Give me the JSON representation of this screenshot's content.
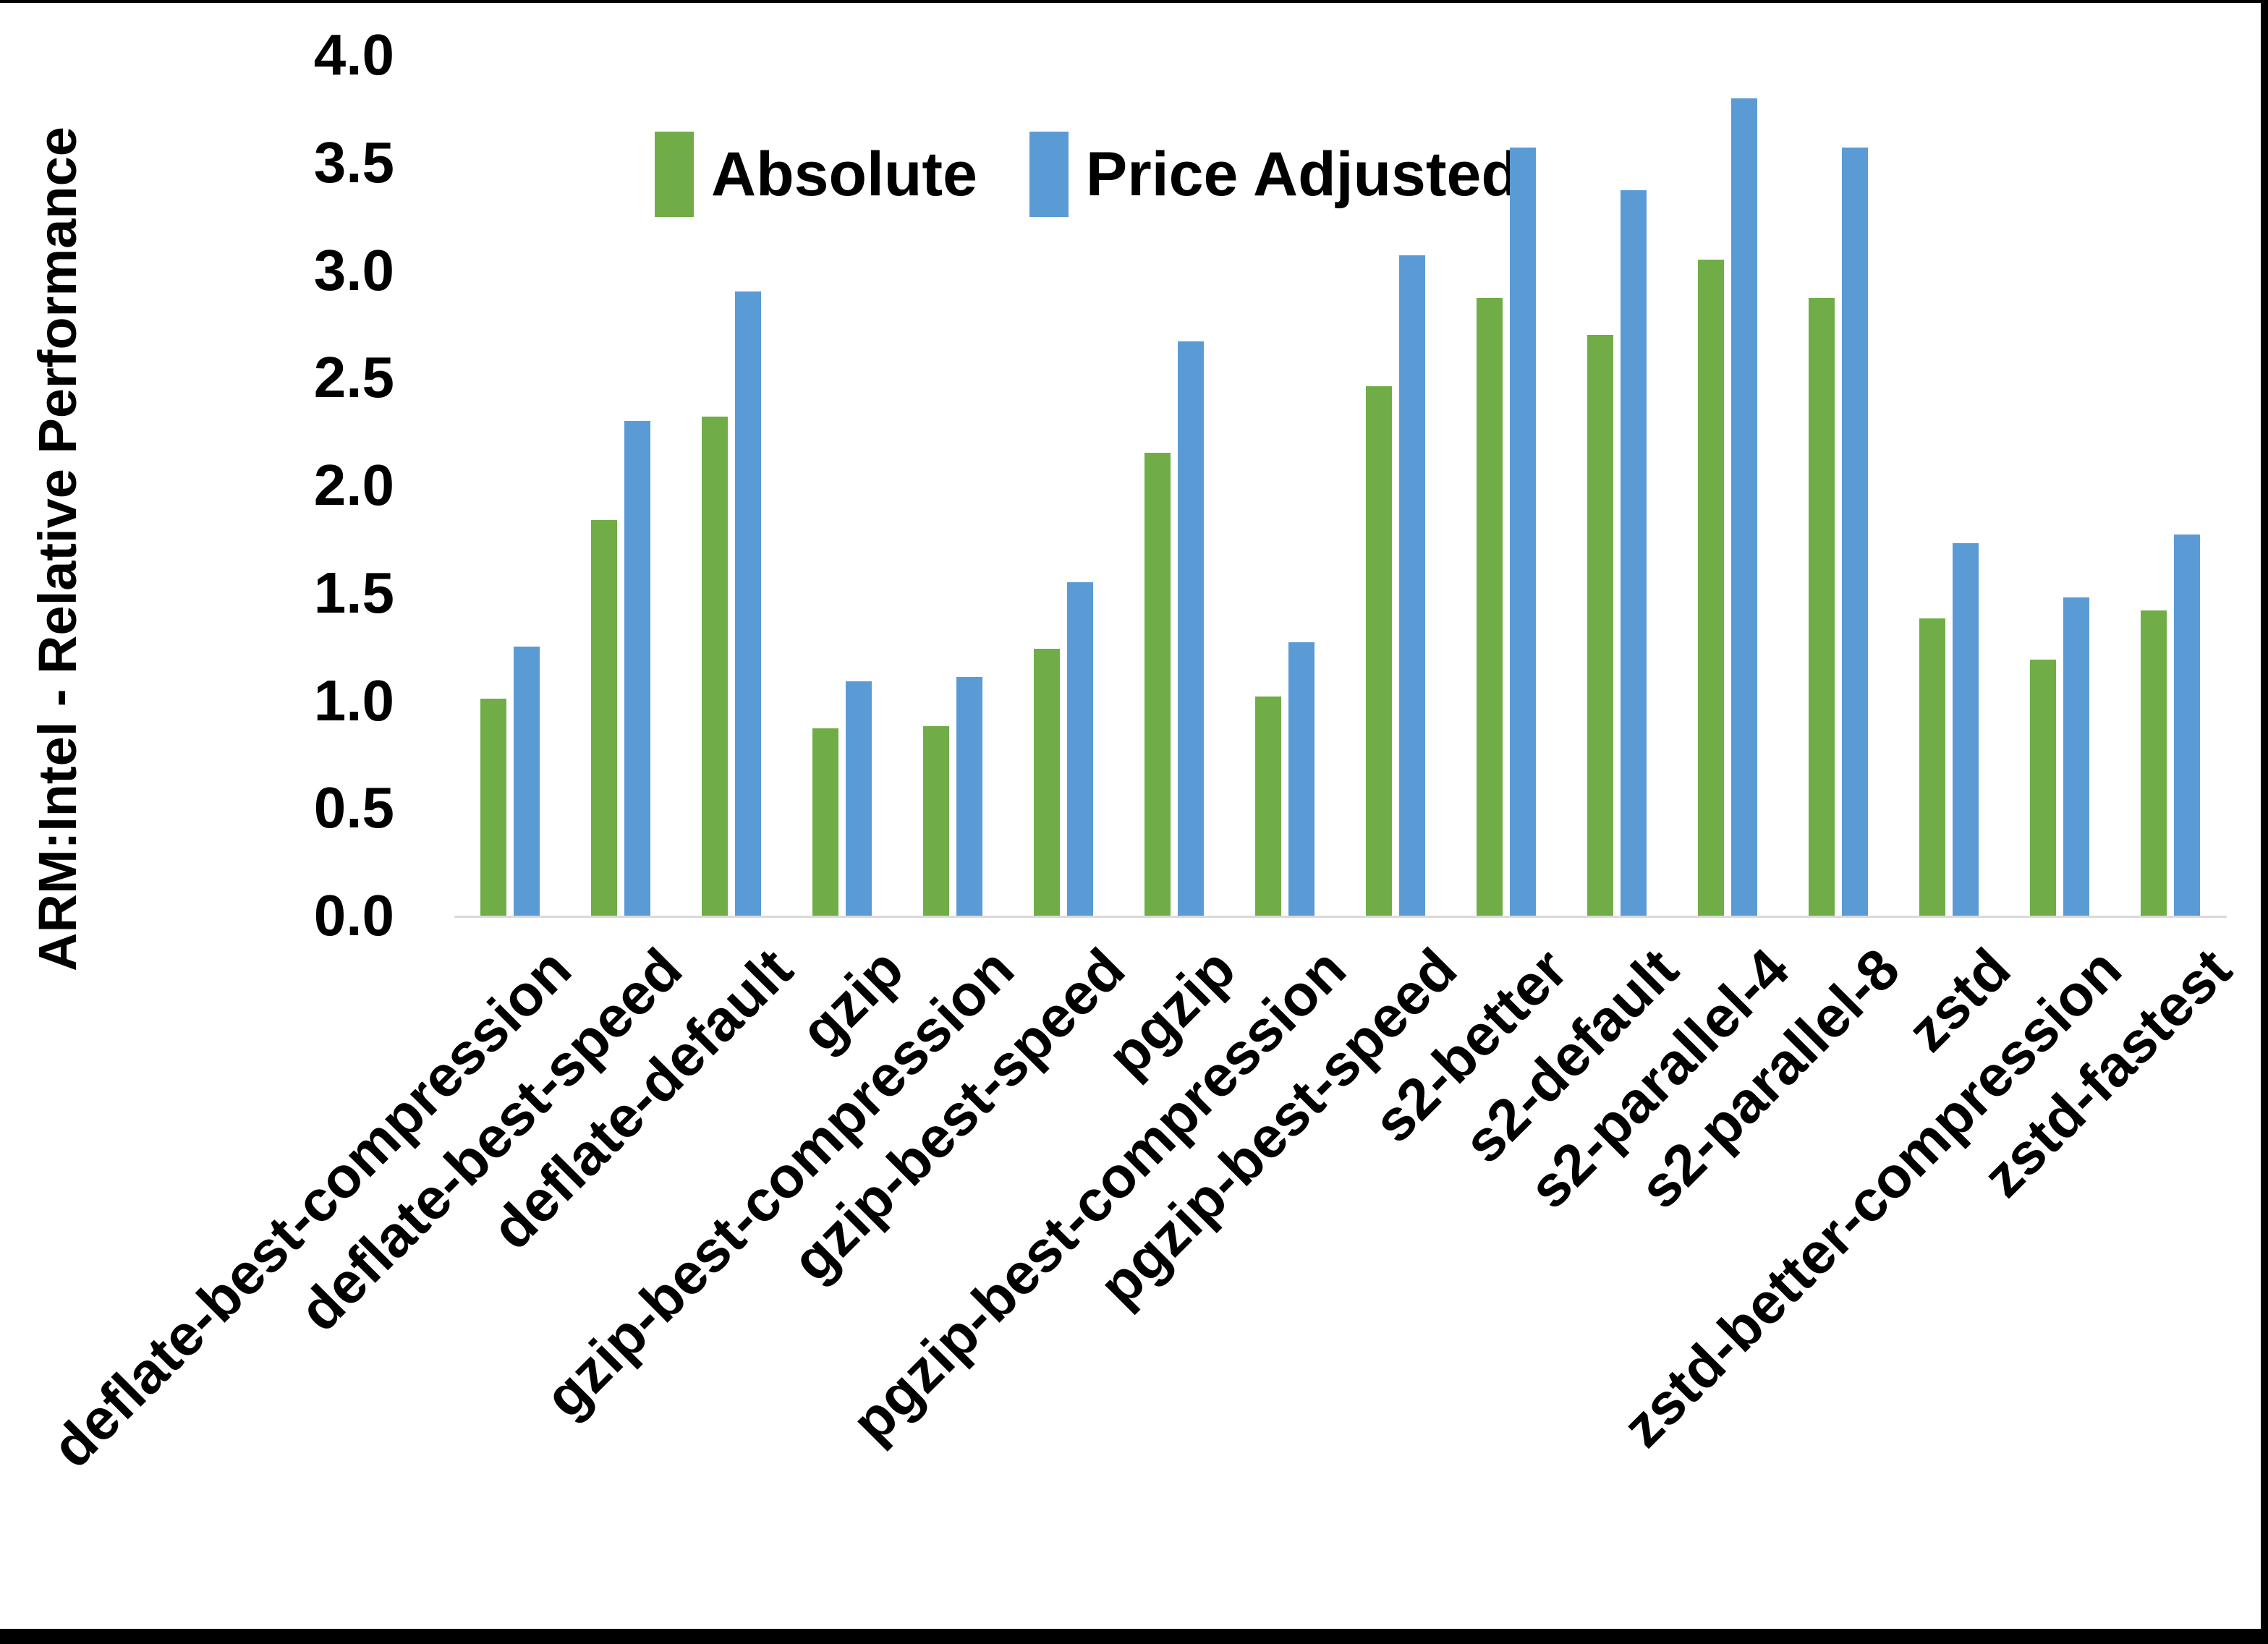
{
  "chart_data": {
    "type": "bar",
    "title": "",
    "xlabel": "",
    "ylabel": "ARM:Intel - Relative Performance",
    "ylim": [
      0.0,
      4.0
    ],
    "ytick_step": 0.5,
    "ytick_labels": [
      "0.0",
      "0.5",
      "1.0",
      "1.5",
      "2.0",
      "2.5",
      "3.0",
      "3.5",
      "4.0"
    ],
    "grid": false,
    "legend_position": "top-center",
    "axis_line_color": "#D9D9D9",
    "categories": [
      "deflate-best-compression",
      "deflate-best-speed",
      "deflate-default",
      "gzip",
      "gzip-best-compression",
      "gzip-best-speed",
      "pgzip",
      "pgzip-best-compression",
      "pgzip-best-speed",
      "s2-better",
      "s2-default",
      "s2-parallel-4",
      "s2-parallel-8",
      "zstd",
      "zstd-better-compression",
      "zstd-fastest"
    ],
    "series": [
      {
        "name": "Absolute",
        "color": "#70AD47",
        "values": [
          1.01,
          1.84,
          2.32,
          0.87,
          0.88,
          1.24,
          2.15,
          1.02,
          2.46,
          2.87,
          2.7,
          3.05,
          2.87,
          1.38,
          1.19,
          1.42
        ]
      },
      {
        "name": "Price Adjusted",
        "color": "#5B9BD5",
        "values": [
          1.25,
          2.3,
          2.9,
          1.09,
          1.11,
          1.55,
          2.67,
          1.27,
          3.07,
          3.57,
          3.37,
          3.8,
          3.57,
          1.73,
          1.48,
          1.77
        ]
      }
    ]
  }
}
